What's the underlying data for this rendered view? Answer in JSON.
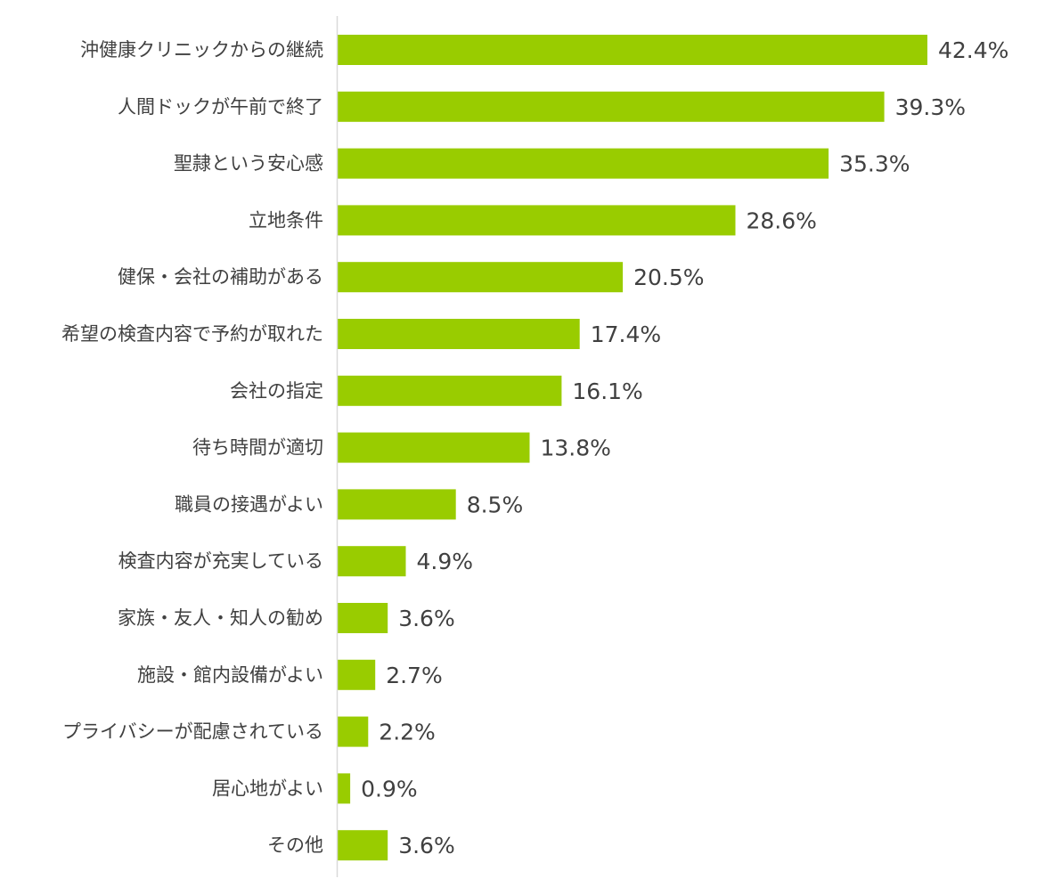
{
  "chart_data": {
    "type": "bar",
    "orientation": "horizontal",
    "categories": [
      "沖健康クリニックからの継続",
      "人間ドックが午前で終了",
      "聖隷という安心感",
      "立地条件",
      "健保・会社の補助がある",
      "希望の検査内容で予約が取れた",
      "会社の指定",
      "待ち時間が適切",
      "職員の接遇がよい",
      "検査内容が充実している",
      "家族・友人・知人の勧め",
      "施設・館内設備がよい",
      "プライバシーが配慮されている",
      "居心地がよい",
      "その他"
    ],
    "values": [
      42.4,
      39.3,
      35.3,
      28.6,
      20.5,
      17.4,
      16.1,
      13.8,
      8.5,
      4.9,
      3.6,
      2.7,
      2.2,
      0.9,
      3.6
    ],
    "value_labels": [
      "42.4%",
      "39.3%",
      "35.3%",
      "28.6%",
      "20.5%",
      "17.4%",
      "16.1%",
      "13.8%",
      "8.5%",
      "4.9%",
      "3.6%",
      "2.7%",
      "2.2%",
      "0.9%",
      "3.6%"
    ],
    "unit": "%",
    "xlim": [
      0,
      42.4
    ],
    "grid": false,
    "legend": "none",
    "bar_color": "#99cc00",
    "axis_color": "#d9d9d9",
    "text_color": "#404040"
  }
}
